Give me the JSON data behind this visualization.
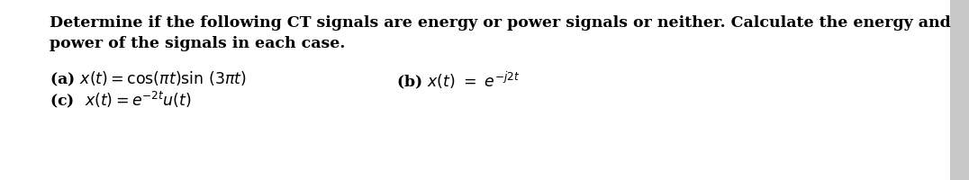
{
  "background_color": "#ffffff",
  "right_border_color": "#cccccc",
  "text_color": "#000000",
  "main_title_line1": "Determine if the following CT signals are energy or power signals or neither. Calculate the energy and",
  "main_title_line2": "power of the signals in each case.",
  "title_fontsize": 12.5,
  "title_bold": true,
  "expr_a_text": "(a) $x(t) = \\cos(\\pi t)\\sin\\,(3\\pi t)$",
  "expr_b_text": "(b) $x(t)\\ =\\ e^{-j2t}$",
  "expr_c_text": "(c)  $x(t) = e^{-2t}u(t)$",
  "expr_fontsize": 12.5
}
